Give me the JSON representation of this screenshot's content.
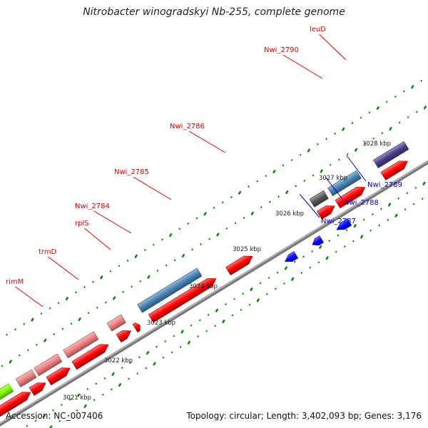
{
  "title": "Nitrobacter winogradskyi Nb-255, complete genome",
  "footer": {
    "accession": "Accession: NC_007406",
    "summary": "Topology: circular; Length: 3,402,093 bp; Genes: 3,176"
  },
  "ticks": [
    "3021 kbp",
    "3022 kbp",
    "3023 kbp",
    "3024 kbp",
    "3025 kbp",
    "3026 kbp",
    "3027 kbp",
    "3028 kbp"
  ],
  "colors": {
    "cds_red": "#ff0000",
    "rrna_pink": "#f08080",
    "gene_blue": "#4682b4",
    "reverse_blue": "#0000ff",
    "gray_gene": "#555555",
    "purple_gene": "#483d8b",
    "green_gene": "#7cfc00",
    "label_red": "#dd0000",
    "label_blue": "#0000cc",
    "dots": "#008000"
  },
  "forward_labels": [
    {
      "name": "rimM"
    },
    {
      "name": "trmD"
    },
    {
      "name": "rplS"
    },
    {
      "name": "Nwi_2784"
    },
    {
      "name": "Nwi_2785"
    },
    {
      "name": "Nwi_2786"
    },
    {
      "name": "Nwi_2790"
    },
    {
      "name": "leuD"
    }
  ],
  "reverse_labels": [
    {
      "name": "Nwi_2787"
    },
    {
      "name": "Nwi_2788"
    },
    {
      "name": "Nwi_2789"
    }
  ]
}
